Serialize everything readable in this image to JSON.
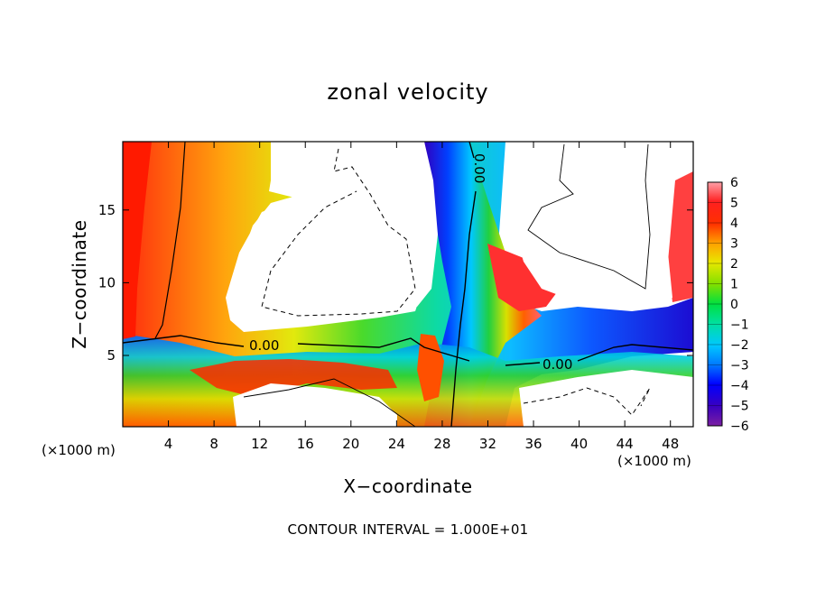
{
  "chart_data": {
    "type": "contour",
    "title": "zonal velocity",
    "xlabel": "X−coordinate",
    "ylabel": "Z−coordinate",
    "x_units": "(×1000 m)",
    "z_units": "(×1000 m)",
    "x_ticks": [
      4,
      8,
      12,
      16,
      20,
      24,
      28,
      32,
      36,
      40,
      44,
      48
    ],
    "y_ticks": [
      5,
      10,
      15
    ],
    "xlim": [
      0,
      50
    ],
    "ylim": [
      0.1,
      19.7
    ],
    "contour_labels": [
      "0.00",
      "0.00",
      "0.00"
    ],
    "colorbar": {
      "ticks": [
        "6",
        "5",
        "4",
        "3",
        "2",
        "1",
        "0",
        "−1",
        "−2",
        "−3",
        "−4",
        "−5",
        "−6"
      ],
      "range": [
        -6,
        6
      ]
    },
    "note": "CONTOUR INTERVAL = 1.000E+01",
    "legend_placement": "right"
  },
  "colors": {
    "scale": [
      "#7b1fa2",
      "#3a00c0",
      "#0000ff",
      "#0078ff",
      "#00c8ff",
      "#00e0c0",
      "#00e060",
      "#20d020",
      "#90e000",
      "#e0e800",
      "#ffc000",
      "#ff8000",
      "#ff3000",
      "#ff0000",
      "#ff6070",
      "#ffa0a8"
    ]
  }
}
